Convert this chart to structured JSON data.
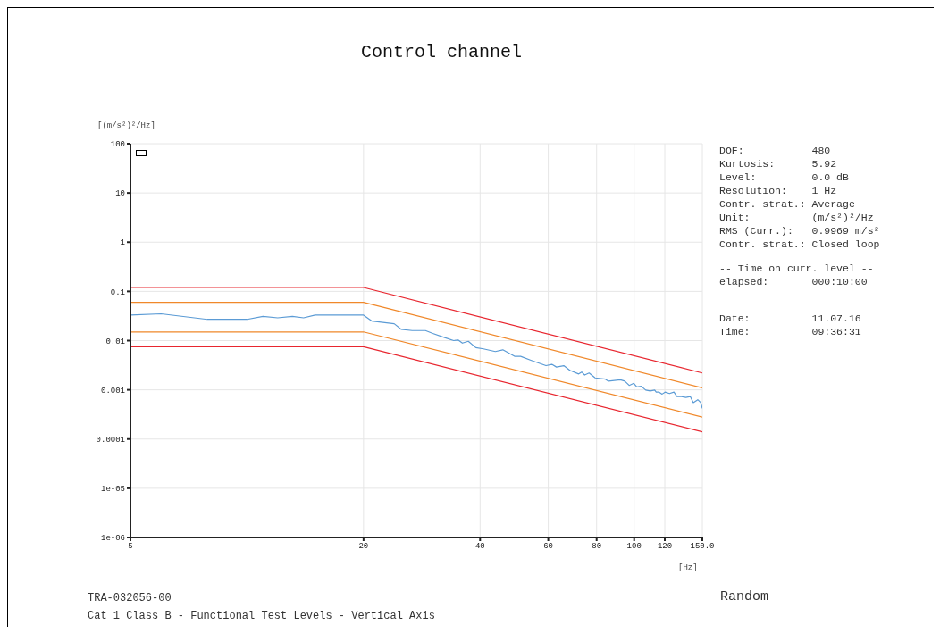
{
  "chart_data": {
    "type": "line",
    "title": "Control channel",
    "xlabel": "[Hz]",
    "ylabel": "[(m/s²)²/Hz]",
    "log": "xy",
    "grid": true,
    "marker": "none",
    "line_style": "solid",
    "xlim": [
      5,
      150
    ],
    "xticks": [
      5,
      20,
      40,
      60,
      80,
      100,
      120,
      {
        "value": 150,
        "label": "150.0"
      }
    ],
    "ylim": [
      1e-06,
      100
    ],
    "yticks": [
      {
        "value": 1e-06,
        "label": "1e-06"
      },
      {
        "value": 1e-05,
        "label": "1e-05"
      },
      {
        "value": 0.0001,
        "label": "0.0001"
      },
      {
        "value": 0.001,
        "label": "0.001"
      },
      {
        "value": 0.01,
        "label": "0.01"
      },
      {
        "value": 0.1,
        "label": "0.1"
      },
      1,
      10,
      100
    ],
    "series": [
      {
        "color": "#e8262f",
        "x": [
          5,
          20,
          150
        ],
        "values": [
          0.12,
          0.12,
          0.0022
        ]
      },
      {
        "color": "#f0882a",
        "x": [
          5,
          20,
          150
        ],
        "values": [
          0.06,
          0.06,
          0.0011
        ]
      },
      {
        "color": "#f0882a",
        "x": [
          5,
          20,
          150
        ],
        "values": [
          0.015,
          0.015,
          0.00028
        ]
      },
      {
        "color": "#e8262f",
        "x": [
          5,
          20,
          150
        ],
        "values": [
          0.0075,
          0.0075,
          0.00014
        ]
      },
      {
        "color": "#5b9bd5",
        "x": [
          5,
          6,
          7.9,
          10,
          11,
          12,
          13.1,
          14,
          15,
          20,
          21,
          24,
          25,
          26.7,
          28.9,
          30.2,
          32.4,
          34.2,
          35.1,
          36,
          37.3,
          39,
          40.8,
          43.8,
          45.8,
          49.1,
          50.9,
          54.1,
          59.2,
          61.3,
          63,
          65.8,
          68.2,
          71.9,
          73.2,
          74.5,
          76.5,
          79.3,
          84.3,
          85.8,
          92.1,
          94.6,
          97.1,
          99.8,
          101.6,
          104.3,
          107.1,
          110,
          113,
          114,
          116,
          118.1,
          120.2,
          123.4,
          126.7,
          129,
          132.5,
          136,
          139.7,
          142.2,
          146,
          148.6,
          150
        ],
        "values": [
          0.033,
          0.035,
          0.027,
          0.027,
          0.031,
          0.029,
          0.031,
          0.029,
          0.033,
          0.033,
          0.025,
          0.022,
          0.017,
          0.016,
          0.016,
          0.014,
          0.0115,
          0.01,
          0.0103,
          0.0089,
          0.0097,
          0.0072,
          0.0068,
          0.006,
          0.0065,
          0.0048,
          0.0048,
          0.004,
          0.0031,
          0.0033,
          0.0029,
          0.0031,
          0.0025,
          0.0021,
          0.0023,
          0.002,
          0.0022,
          0.00175,
          0.00165,
          0.0015,
          0.0016,
          0.0015,
          0.00123,
          0.00136,
          0.00115,
          0.00118,
          0.00099,
          0.00095,
          0.00099,
          0.0009,
          0.0009,
          0.00082,
          0.0009,
          0.00084,
          0.0009,
          0.00073,
          0.00073,
          0.0007,
          0.00073,
          0.00055,
          0.00063,
          0.00055,
          0.00042
        ]
      }
    ],
    "annotations": [
      "DOF:           480",
      "Kurtosis:      5.92",
      "Level:         0.0 dB",
      "Resolution:    1 Hz",
      "Contr. strat.: Average",
      "Unit:          (m/s²)²/Hz",
      "RMS (Curr.):   0.9969 m/s²",
      "Contr. strat.: Closed loop",
      "-- Time on curr. level --",
      "elapsed:       000:10:00",
      "Date:          11.07.16",
      "Time:          09:36:31",
      "TRA-032056-00",
      "Cat 1 Class B - Functional Test Levels - Vertical Axis",
      "Random"
    ]
  }
}
